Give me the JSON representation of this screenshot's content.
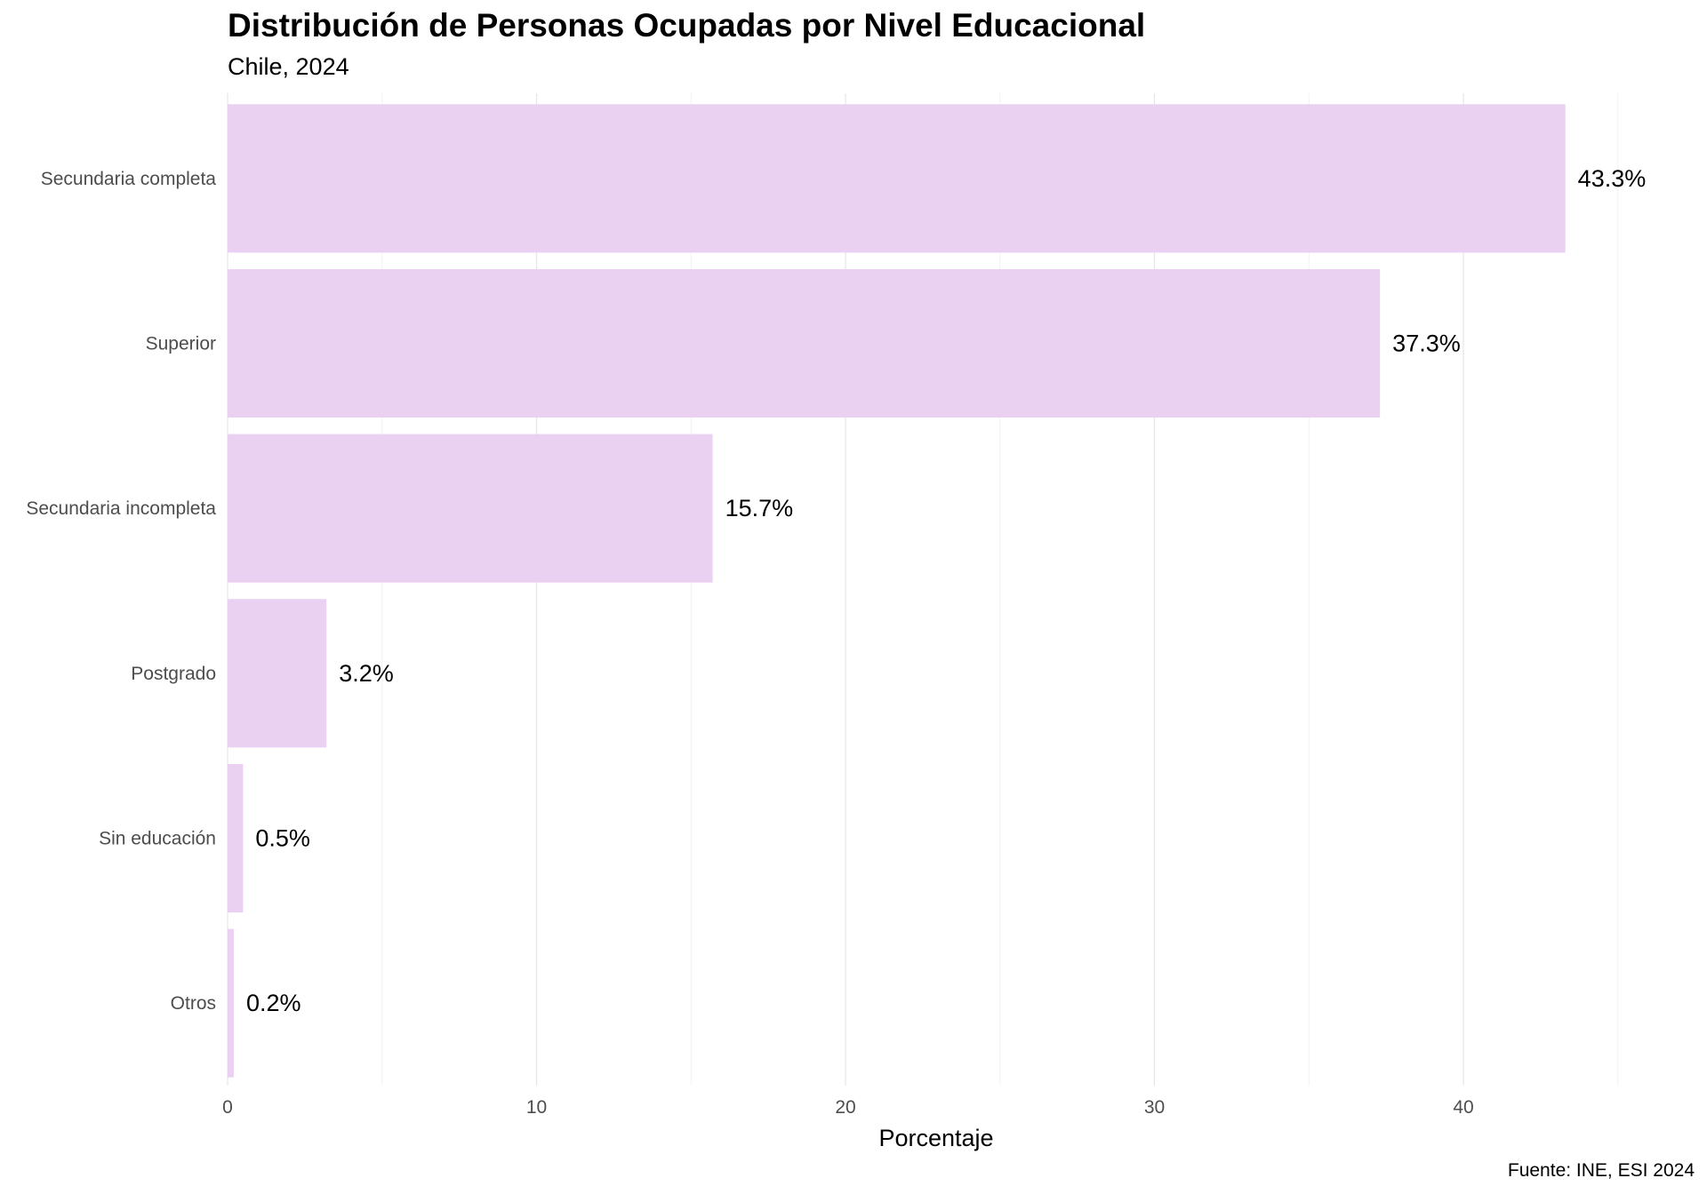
{
  "title": "Distribución de Personas Ocupadas por Nivel Educacional",
  "subtitle": "Chile, 2024",
  "caption": "Fuente: INE, ESI 2024",
  "colors": {
    "bar": "#ead0f1",
    "grid_major": "#e6e6e6",
    "grid_minor": "#f2f2f2"
  },
  "chart_data": {
    "type": "bar",
    "orientation": "horizontal",
    "title": "Distribución de Personas Ocupadas por Nivel Educacional",
    "subtitle": "Chile, 2024",
    "xlabel": "Porcentaje",
    "ylabel": "",
    "categories": [
      "Secundaria completa",
      "Superior",
      "Secundaria incompleta",
      "Postgrado",
      "Sin educación",
      "Otros"
    ],
    "values": [
      43.3,
      37.3,
      15.7,
      3.2,
      0.5,
      0.2
    ],
    "data_labels": [
      "43.3%",
      "37.3%",
      "15.7%",
      "3.2%",
      "0.5%",
      "0.2%"
    ],
    "xlim": [
      0,
      45.5
    ],
    "xticks": [
      0,
      10,
      20,
      30,
      40
    ],
    "xtick_labels": [
      "0",
      "10",
      "20",
      "30",
      "40"
    ],
    "grid": true,
    "legend": "none"
  }
}
